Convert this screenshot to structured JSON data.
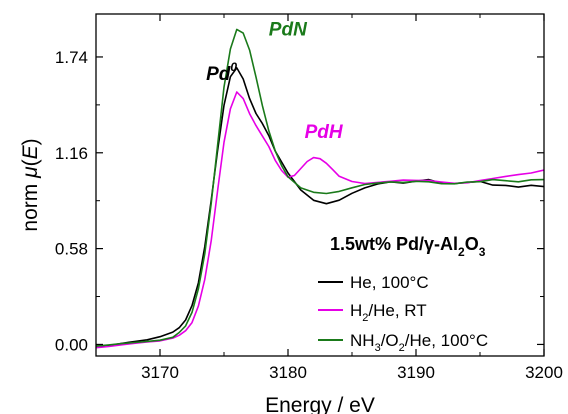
{
  "chart_data": {
    "type": "line",
    "xlabel": "Energy / eV",
    "ylabel": {
      "pre": "norm ",
      "mu": "μ",
      "open": "(",
      "e": "E",
      "close": ")"
    },
    "xlim": [
      3165,
      3200
    ],
    "ylim": [
      -0.07,
      2.0
    ],
    "xticks": [
      3170,
      3180,
      3190,
      3200
    ],
    "yticks": [
      0.0,
      0.58,
      1.16,
      1.74
    ],
    "ytick_labels": [
      "0.00",
      "0.58",
      "1.16",
      "1.74"
    ],
    "grid": false,
    "legend_position": "lower-right",
    "sample_title": {
      "main": "1.5wt% Pd/γ-Al",
      "sub1": "2",
      "mid": "O",
      "sub2": "3"
    },
    "annotations": [
      {
        "id": "pd0",
        "text": "Pd",
        "sup": "0",
        "color": "#000000",
        "x": 3173.6,
        "y": 1.6
      },
      {
        "id": "pdn",
        "text": "PdN",
        "color": "#1a7a1a",
        "x": 3178.5,
        "y": 1.87
      },
      {
        "id": "pdh",
        "text": "PdH",
        "color": "#e600e6",
        "x": 3181.3,
        "y": 1.25
      }
    ],
    "series": [
      {
        "id": "he",
        "name": "He, 100°C",
        "legend_parts": [
          {
            "t": "He, 100°C"
          }
        ],
        "color": "#000000",
        "x": [
          3165,
          3166,
          3167,
          3168,
          3169,
          3170,
          3171,
          3171.5,
          3172,
          3172.5,
          3173,
          3173.5,
          3174,
          3174.5,
          3175,
          3175.5,
          3176,
          3176.5,
          3177,
          3177.5,
          3178,
          3178.5,
          3179,
          3180,
          3181,
          3182,
          3183,
          3184,
          3185,
          3186,
          3187,
          3188,
          3189,
          3190,
          3191,
          3192,
          3193,
          3194,
          3195,
          3196,
          3197,
          3198,
          3199,
          3200
        ],
        "y": [
          -0.01,
          -0.01,
          0.0,
          0.01,
          0.02,
          0.04,
          0.07,
          0.1,
          0.15,
          0.24,
          0.38,
          0.6,
          0.88,
          1.18,
          1.45,
          1.62,
          1.67,
          1.6,
          1.48,
          1.39,
          1.33,
          1.26,
          1.17,
          1.04,
          0.94,
          0.88,
          0.86,
          0.88,
          0.92,
          0.95,
          0.97,
          0.98,
          0.97,
          0.98,
          0.99,
          0.97,
          0.97,
          0.98,
          0.99,
          0.97,
          0.97,
          0.96,
          0.97,
          0.96
        ]
      },
      {
        "id": "h2",
        "name": "H2/He, RT",
        "legend_parts": [
          {
            "t": "H"
          },
          {
            "t": "2",
            "sub": true
          },
          {
            "t": "/He, RT"
          }
        ],
        "color": "#e600e6",
        "x": [
          3165,
          3166,
          3167,
          3168,
          3169,
          3170,
          3171,
          3171.5,
          3172,
          3172.5,
          3173,
          3173.5,
          3174,
          3174.5,
          3175,
          3175.5,
          3176,
          3176.5,
          3177,
          3177.5,
          3178,
          3178.5,
          3179,
          3179.5,
          3180,
          3180.5,
          3181,
          3181.5,
          3182,
          3182.5,
          3183,
          3183.5,
          3184,
          3185,
          3186,
          3187,
          3188,
          3189,
          3190,
          3191,
          3192,
          3193,
          3194,
          3195,
          3196,
          3197,
          3198,
          3199,
          3200
        ],
        "y": [
          -0.02,
          -0.02,
          -0.01,
          0.0,
          0.01,
          0.02,
          0.04,
          0.06,
          0.09,
          0.14,
          0.24,
          0.4,
          0.63,
          0.93,
          1.22,
          1.42,
          1.52,
          1.48,
          1.39,
          1.32,
          1.26,
          1.2,
          1.12,
          1.06,
          1.02,
          1.03,
          1.07,
          1.11,
          1.13,
          1.12,
          1.09,
          1.05,
          1.01,
          0.98,
          0.97,
          0.98,
          0.99,
          1.0,
          1.0,
          1.0,
          0.99,
          0.98,
          0.98,
          0.99,
          1.0,
          1.01,
          1.02,
          1.03,
          1.05
        ]
      },
      {
        "id": "nh3",
        "name": "NH3/O2/He, 100°C",
        "legend_parts": [
          {
            "t": "NH"
          },
          {
            "t": "3",
            "sub": true
          },
          {
            "t": "/O"
          },
          {
            "t": "2",
            "sub": true
          },
          {
            "t": "/He, 100°C"
          }
        ],
        "color": "#1a7a1a",
        "x": [
          3165,
          3166,
          3167,
          3168,
          3169,
          3170,
          3171,
          3171.5,
          3172,
          3172.5,
          3173,
          3173.5,
          3174,
          3174.5,
          3175,
          3175.5,
          3176,
          3176.5,
          3177,
          3177.5,
          3178,
          3178.5,
          3179,
          3179.5,
          3180,
          3181,
          3182,
          3183,
          3184,
          3185,
          3186,
          3187,
          3188,
          3189,
          3190,
          3191,
          3192,
          3193,
          3194,
          3195,
          3196,
          3197,
          3198,
          3199,
          3200
        ],
        "y": [
          -0.01,
          -0.01,
          0.0,
          0.01,
          0.02,
          0.03,
          0.05,
          0.08,
          0.12,
          0.2,
          0.34,
          0.55,
          0.85,
          1.2,
          1.55,
          1.78,
          1.9,
          1.88,
          1.78,
          1.62,
          1.45,
          1.3,
          1.18,
          1.09,
          1.02,
          0.95,
          0.92,
          0.91,
          0.92,
          0.94,
          0.96,
          0.97,
          0.98,
          0.98,
          0.99,
          0.99,
          0.98,
          0.98,
          0.99,
          0.99,
          1.0,
          0.99,
          0.98,
          0.99,
          0.99
        ]
      }
    ]
  }
}
